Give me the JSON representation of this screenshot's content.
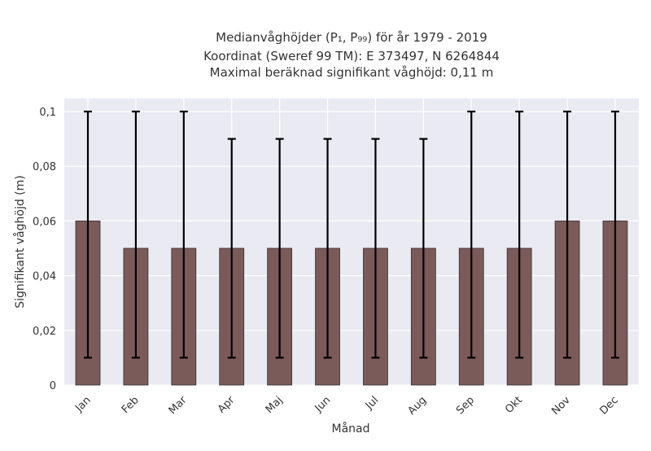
{
  "chart_data": {
    "type": "bar",
    "title_lines": [
      "Medianvåghöjder (P₁, P₉₉) för år 1979 - 2019",
      "Koordinat (Sweref 99 TM): E 373497, N 6264844",
      "Maximal beräknad signifikant våghöjd: 0,11 m"
    ],
    "xlabel": "Månad",
    "ylabel": "Signifikant våghöjd (m)",
    "categories": [
      "Jan",
      "Feb",
      "Mar",
      "Apr",
      "Maj",
      "Jun",
      "Jul",
      "Aug",
      "Sep",
      "Okt",
      "Nov",
      "Dec"
    ],
    "series": [
      {
        "values": [
          0.06,
          0.05,
          0.05,
          0.05,
          0.05,
          0.05,
          0.05,
          0.05,
          0.05,
          0.05,
          0.06,
          0.06
        ],
        "error_low": [
          0.01,
          0.01,
          0.01,
          0.01,
          0.01,
          0.01,
          0.01,
          0.01,
          0.01,
          0.01,
          0.01,
          0.01
        ],
        "error_high": [
          0.1,
          0.1,
          0.1,
          0.09,
          0.09,
          0.09,
          0.09,
          0.09,
          0.1,
          0.1,
          0.1,
          0.1
        ]
      }
    ],
    "ylim": [
      0,
      0.1
    ],
    "yticks": [
      0,
      0.02,
      0.04,
      0.06,
      0.08,
      0.1
    ],
    "ytick_labels": [
      "0",
      "0,02",
      "0,04",
      "0,06",
      "0,08",
      "0,1"
    ],
    "grid": true,
    "colors": {
      "bar": "#7b5a5a",
      "bar_edge": "#3d2f2f",
      "error_bar": "#000000",
      "background": "#eaeaf2",
      "grid": "#ffffff"
    }
  }
}
